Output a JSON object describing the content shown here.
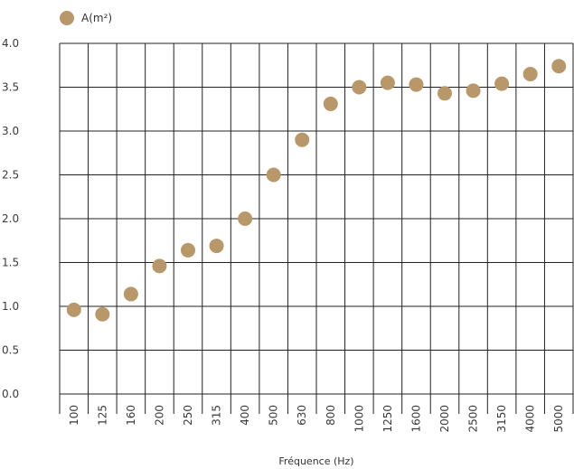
{
  "chart_data": {
    "type": "scatter",
    "title": "",
    "xlabel": "Fréquence (Hz)",
    "ylabel": "",
    "categories": [
      "100",
      "125",
      "160",
      "200",
      "250",
      "315",
      "400",
      "500",
      "630",
      "800",
      "1000",
      "1250",
      "1600",
      "2000",
      "2500",
      "3150",
      "4000",
      "5000"
    ],
    "series": [
      {
        "name": "A(m²)",
        "values": [
          0.96,
          0.91,
          1.14,
          1.46,
          1.64,
          1.69,
          2.0,
          2.5,
          2.9,
          3.31,
          3.5,
          3.55,
          3.53,
          3.43,
          3.46,
          3.54,
          3.65,
          3.74
        ]
      }
    ],
    "yticks": [
      "0.0",
      "0.5",
      "1.0",
      "1.5",
      "2.0",
      "2.5",
      "3.0",
      "3.5",
      "4.0"
    ],
    "ylim": [
      0,
      4
    ],
    "grid": true,
    "legend_position": "top-left",
    "colors": {
      "marker": "#B8976A",
      "grid": "#222222"
    }
  }
}
